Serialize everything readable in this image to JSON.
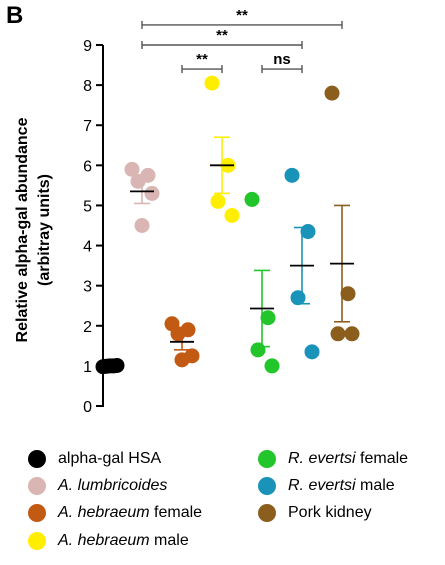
{
  "panel_label": "B",
  "chart_data": {
    "type": "scatter",
    "ylabel_line1": "Relative alpha-gal abundance",
    "ylabel_line2": "(arbitray units)",
    "ylim": [
      0,
      9
    ],
    "yticks": [
      "0",
      "1",
      "2",
      "3",
      "4",
      "5",
      "6",
      "7",
      "8",
      "9"
    ],
    "grid": false,
    "legend_position": "bottom",
    "groups": [
      {
        "legend_italic": "",
        "legend_text": "alpha-gal HSA",
        "color": "#000000",
        "points": [
          0.98,
          0.99,
          1.0,
          1.0,
          1.01
        ],
        "mean": 1.0,
        "error": 0.01
      },
      {
        "legend_italic": "A. lumbricoides",
        "legend_text": "",
        "color": "#d9b5b3",
        "points": [
          5.9,
          5.75,
          5.6,
          5.3,
          4.5
        ],
        "mean": 5.35,
        "error": 0.3
      },
      {
        "legend_italic": "A. hebraeum",
        "legend_text": " female",
        "color": "#c35a14",
        "points": [
          2.05,
          1.9,
          1.8,
          1.25,
          1.15
        ],
        "mean": 1.6,
        "error": 0.2
      },
      {
        "legend_italic": "A. hebraeum",
        "legend_text": " male",
        "color": "#ffee00",
        "points": [
          8.05,
          6.0,
          5.1,
          4.75
        ],
        "mean": 6.0,
        "error": 0.7
      },
      {
        "legend_italic": "R. evertsi",
        "legend_text": " female",
        "color": "#22c52a",
        "points": [
          5.15,
          2.2,
          1.4,
          1.0
        ],
        "mean": 2.43,
        "error": 0.95
      },
      {
        "legend_italic": "R. evertsi",
        "legend_text": " male",
        "color": "#1a93b8",
        "points": [
          5.75,
          4.35,
          2.7,
          1.35
        ],
        "mean": 3.5,
        "error": 0.95
      },
      {
        "legend_italic": "",
        "legend_text": "Pork kidney",
        "color": "#8b5e1e",
        "points": [
          7.8,
          2.8,
          1.8,
          1.8
        ],
        "mean": 3.55,
        "error": 1.45
      }
    ],
    "significance": [
      {
        "from": 1,
        "to": 6,
        "label": "**",
        "y": 9.5
      },
      {
        "from": 1,
        "to": 5,
        "label": "**",
        "y": 9.0
      },
      {
        "from": 2,
        "to": 3,
        "label": "**",
        "y": 8.4
      },
      {
        "from": 4,
        "to": 5,
        "label": "ns",
        "y": 8.4
      }
    ]
  }
}
